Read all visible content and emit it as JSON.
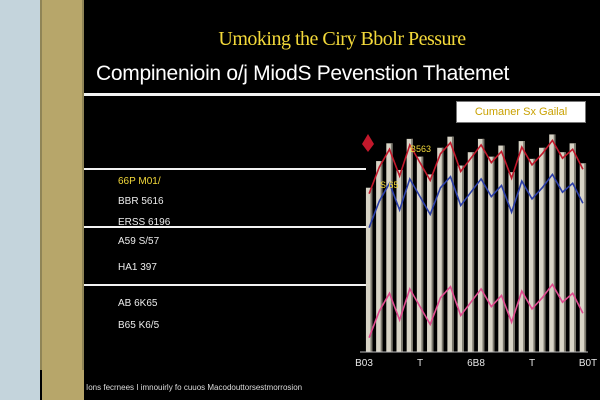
{
  "title": "Umoking the Ciry Bbolr Pessure",
  "subtitle": "Compinenioin o/j MiodS Pevenstion Thatemet",
  "footer": "Ions fecrnees I imnouirly fo cuuos Macodouttorsestmorrosion",
  "colors": {
    "background": "#000000",
    "title": "#f3d93a",
    "bar": "#d8d4c6",
    "bar_shade": "#7a776c",
    "trend_red": "#c2182b",
    "trend_blue": "#2b3ea8",
    "trend_pink": "#e04a8f"
  },
  "chart_data": {
    "type": "bar",
    "title": "Umoking the Ciry Bbolr Pessure",
    "subtitle": "Compinenioin o/j MiodS Pevenstion Thatemet",
    "legend": {
      "label": "Cumaner Sx Gailal",
      "placement": "top-right"
    },
    "row_labels": [
      {
        "text": "66P M01/",
        "highlight": true
      },
      {
        "text": "BBR 5616",
        "highlight": false
      },
      {
        "text": "ERSS 6196",
        "highlight": false
      },
      {
        "text": "A59 S/57",
        "highlight": false
      },
      {
        "text": "HA1 397",
        "highlight": false
      },
      {
        "text": "AB 6K65",
        "highlight": false
      },
      {
        "text": "B65 K6/5",
        "highlight": false
      }
    ],
    "x_tick_labels": [
      "B03",
      "T",
      "6B8",
      "T",
      "B0T"
    ],
    "annotations": [
      "B563",
      "S 65"
    ],
    "values": [
      0.74,
      0.86,
      0.94,
      0.82,
      0.96,
      0.88,
      0.8,
      0.92,
      0.97,
      0.84,
      0.9,
      0.96,
      0.88,
      0.93,
      0.81,
      0.95,
      0.87,
      0.92,
      0.98,
      0.9,
      0.94,
      0.85
    ],
    "ylim": [
      0,
      1
    ],
    "grid": false
  }
}
